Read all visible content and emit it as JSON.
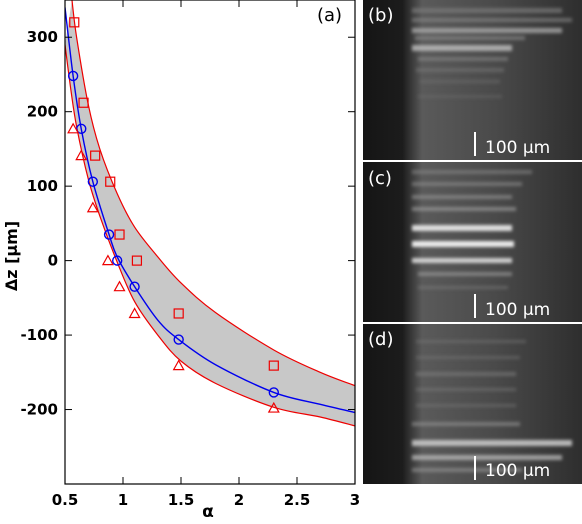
{
  "figure": {
    "panel_labels": [
      "(a)",
      "(b)",
      "(c)",
      "(d)"
    ],
    "scale_bar_text": "100  µm"
  },
  "chart_data": {
    "type": "scatter",
    "xlabel": "α",
    "ylabel": "Δz [µm]",
    "xlim": [
      0.5,
      3.0
    ],
    "ylim": [
      -300,
      350
    ],
    "xticks": [
      0.5,
      1,
      1.5,
      2,
      2.5,
      3
    ],
    "xtick_labels": [
      "0.5",
      "1",
      "1.5",
      "2",
      "2.5",
      "3"
    ],
    "yticks": [
      300,
      200,
      100,
      0,
      -100,
      -200
    ],
    "ytick_labels": [
      "300",
      "200",
      "100",
      "0",
      "-100",
      "-200"
    ],
    "grid": false,
    "legend": "none",
    "series": [
      {
        "marker": "circle",
        "color": "#0000ee",
        "points": [
          [
            0.57,
            248
          ],
          [
            0.64,
            177
          ],
          [
            0.74,
            106
          ],
          [
            0.88,
            35
          ],
          [
            0.95,
            0
          ],
          [
            1.1,
            -35
          ],
          [
            1.48,
            -106
          ],
          [
            2.3,
            -177
          ]
        ]
      },
      {
        "marker": "square",
        "color": "#ee0000",
        "points": [
          [
            0.58,
            320
          ],
          [
            0.66,
            212
          ],
          [
            0.76,
            141
          ],
          [
            0.89,
            106
          ],
          [
            0.97,
            35
          ],
          [
            1.12,
            0
          ],
          [
            1.48,
            -71
          ],
          [
            2.3,
            -141
          ]
        ]
      },
      {
        "marker": "triangle",
        "color": "#ee0000",
        "points": [
          [
            0.57,
            177
          ],
          [
            0.64,
            141
          ],
          [
            0.74,
            71
          ],
          [
            0.87,
            0
          ],
          [
            0.97,
            -35
          ],
          [
            1.1,
            -71
          ],
          [
            1.48,
            -141
          ],
          [
            2.3,
            -198
          ]
        ]
      }
    ],
    "fit_curve": {
      "color": "#0000ee",
      "band_fill": "#c8c8c8",
      "band_edge_color": "#ee0000",
      "center": [
        [
          0.5,
          340
        ],
        [
          0.57,
          248
        ],
        [
          0.64,
          177
        ],
        [
          0.74,
          106
        ],
        [
          0.88,
          35
        ],
        [
          0.95,
          5
        ],
        [
          1.1,
          -35
        ],
        [
          1.3,
          -80
        ],
        [
          1.48,
          -106
        ],
        [
          1.8,
          -140
        ],
        [
          2.3,
          -177
        ],
        [
          2.7,
          -193
        ],
        [
          3.0,
          -204
        ]
      ],
      "upper": [
        [
          0.56,
          350
        ],
        [
          0.6,
          300
        ],
        [
          0.7,
          210
        ],
        [
          0.8,
          150
        ],
        [
          0.95,
          90
        ],
        [
          1.1,
          45
        ],
        [
          1.3,
          5
        ],
        [
          1.5,
          -30
        ],
        [
          1.8,
          -70
        ],
        [
          2.3,
          -120
        ],
        [
          2.7,
          -150
        ],
        [
          3.0,
          -168
        ]
      ],
      "lower": [
        [
          0.5,
          290
        ],
        [
          0.55,
          230
        ],
        [
          0.6,
          180
        ],
        [
          0.7,
          110
        ],
        [
          0.8,
          60
        ],
        [
          0.95,
          -2
        ],
        [
          1.1,
          -55
        ],
        [
          1.3,
          -100
        ],
        [
          1.5,
          -135
        ],
        [
          1.8,
          -165
        ],
        [
          2.3,
          -197
        ],
        [
          2.7,
          -210
        ],
        [
          3.0,
          -222
        ]
      ]
    }
  }
}
